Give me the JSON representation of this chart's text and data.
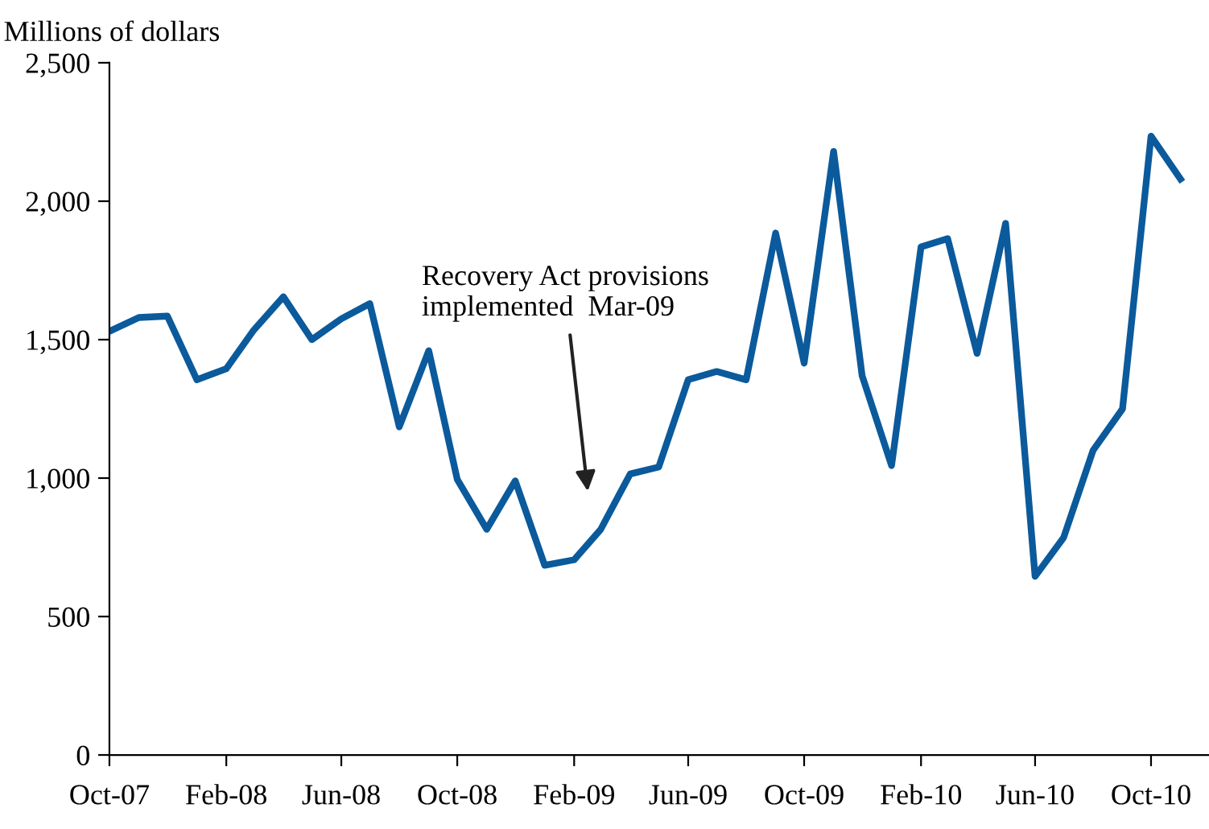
{
  "chart_data": {
    "type": "line",
    "ylabel": "Millions of dollars",
    "x": [
      "2007-10",
      "2007-11",
      "2007-12",
      "2008-01",
      "2008-02",
      "2008-03",
      "2008-04",
      "2008-05",
      "2008-06",
      "2008-07",
      "2008-08",
      "2008-09",
      "2008-10",
      "2008-11",
      "2008-12",
      "2009-01",
      "2009-02",
      "2009-03",
      "2009-04",
      "2009-05",
      "2009-06",
      "2009-07",
      "2009-08",
      "2009-09",
      "2009-10",
      "2009-11",
      "2009-12",
      "2010-01",
      "2010-02",
      "2010-03",
      "2010-04",
      "2010-05",
      "2010-06",
      "2010-07",
      "2010-08",
      "2010-09",
      "2010-10",
      "2010-11"
    ],
    "series": [
      {
        "color": "#0b5a9c",
        "values": [
          1530,
          1580,
          1585,
          1355,
          1395,
          1535,
          1655,
          1500,
          1575,
          1630,
          1185,
          1460,
          995,
          815,
          990,
          685,
          705,
          815,
          1015,
          1040,
          1355,
          1385,
          1355,
          1885,
          1415,
          2180,
          1370,
          1045,
          1835,
          1865,
          1450,
          1920,
          645,
          785,
          1100,
          1250,
          2235,
          2080
        ]
      }
    ],
    "xlim": [
      "2007-10",
      "2010-12"
    ],
    "xticks": [
      {
        "value": "2007-10",
        "label": "Oct-07"
      },
      {
        "value": "2008-02",
        "label": "Feb-08"
      },
      {
        "value": "2008-06",
        "label": "Jun-08"
      },
      {
        "value": "2008-10",
        "label": "Oct-08"
      },
      {
        "value": "2009-02",
        "label": "Feb-09"
      },
      {
        "value": "2009-06",
        "label": "Jun-09"
      },
      {
        "value": "2009-10",
        "label": "Oct-09"
      },
      {
        "value": "2010-02",
        "label": "Feb-10"
      },
      {
        "value": "2010-06",
        "label": "Jun-10"
      },
      {
        "value": "2010-10",
        "label": "Oct-10"
      }
    ],
    "ylim": [
      0,
      2500
    ],
    "yticks": [
      {
        "value": 0,
        "label": "0"
      },
      {
        "value": 500,
        "label": "500"
      },
      {
        "value": 1000,
        "label": "1,000"
      },
      {
        "value": 1500,
        "label": "1,500"
      },
      {
        "value": 2000,
        "label": "2,000"
      },
      {
        "value": 2500,
        "label": "2,500"
      }
    ],
    "grid": false,
    "legend": false,
    "marker": "none",
    "line_style": "solid",
    "annotations": [
      "Recovery Act provisions\nimplemented  Mar-09"
    ]
  }
}
